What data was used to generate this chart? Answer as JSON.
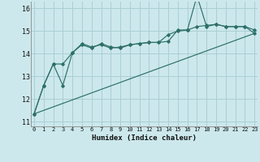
{
  "xlabel": "Humidex (Indice chaleur)",
  "bg_color": "#cce8ec",
  "line_color": "#2d7068",
  "grid_color": "#aacfd4",
  "ylim": [
    10.8,
    16.3
  ],
  "xlim": [
    -0.3,
    23.3
  ],
  "yticks": [
    11,
    12,
    13,
    14,
    15,
    16
  ],
  "xticks": [
    0,
    1,
    2,
    3,
    4,
    5,
    6,
    7,
    8,
    9,
    10,
    11,
    12,
    13,
    14,
    15,
    16,
    17,
    18,
    19,
    20,
    21,
    22,
    23
  ],
  "line1_x": [
    0,
    1,
    2,
    3,
    4,
    5,
    6,
    7,
    8,
    9,
    10,
    11,
    12,
    13,
    14,
    15,
    16,
    17,
    18,
    19,
    20,
    21,
    22,
    23
  ],
  "line1_y": [
    11.35,
    12.6,
    13.55,
    12.6,
    14.05,
    14.4,
    14.25,
    14.45,
    14.3,
    14.25,
    14.4,
    14.45,
    14.5,
    14.5,
    14.85,
    15.0,
    15.05,
    16.55,
    15.2,
    15.3,
    15.2,
    15.2,
    15.2,
    15.05
  ],
  "line2_x": [
    0,
    1,
    2,
    3,
    4,
    5,
    6,
    7,
    8,
    9,
    10,
    11,
    12,
    13,
    14,
    15,
    16,
    17,
    18,
    19,
    20,
    21,
    22,
    23
  ],
  "line2_y": [
    11.35,
    12.6,
    13.55,
    13.55,
    14.05,
    14.45,
    14.3,
    14.4,
    14.25,
    14.3,
    14.4,
    14.45,
    14.5,
    14.5,
    14.55,
    15.05,
    15.05,
    15.2,
    15.25,
    15.3,
    15.2,
    15.2,
    15.2,
    14.9
  ],
  "line3_x": [
    0,
    23
  ],
  "line3_y": [
    11.35,
    14.9
  ]
}
